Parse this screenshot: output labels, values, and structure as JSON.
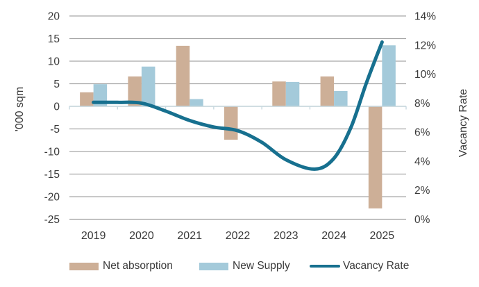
{
  "chart_data": {
    "type": "combo-bar-line",
    "categories": [
      "2019",
      "2020",
      "2021",
      "2022",
      "2023",
      "2024",
      "2025"
    ],
    "left_axis": {
      "title": "'000 sqm",
      "tick_labels": [
        "20",
        "15",
        "10",
        "5",
        "0",
        "-5",
        "-10",
        "-15",
        "-20",
        "-25"
      ],
      "tick_values": [
        20,
        15,
        10,
        5,
        0,
        -5,
        -10,
        -15,
        -20,
        -25
      ],
      "range": [
        -25,
        20
      ]
    },
    "right_axis": {
      "title": "Vacancy Rate",
      "tick_labels": [
        "14%",
        "12%",
        "10%",
        "8%",
        "6%",
        "4%",
        "2%",
        "0%"
      ],
      "tick_values": [
        14,
        12,
        10,
        8,
        6,
        4,
        2,
        0
      ],
      "range_pct": [
        0,
        14
      ]
    },
    "grid": true,
    "legend_position": "bottom",
    "colors": {
      "net_absorption": "#CDAF97",
      "new_supply": "#A4CADA",
      "vacancy": "#17708F",
      "gridline": "#A6A6A6",
      "zero_axis": "#C7D9E0",
      "text": "#3A3A3A"
    },
    "series": [
      {
        "name": "Net absorption",
        "type": "bar",
        "unit": "'000 sqm",
        "color_key": "net_absorption",
        "values": [
          3.1,
          6.6,
          13.4,
          -7.4,
          5.5,
          6.6,
          -22.6
        ]
      },
      {
        "name": "New Supply",
        "type": "bar",
        "unit": "'000 sqm",
        "color_key": "new_supply",
        "values": [
          4.9,
          8.8,
          1.6,
          0,
          5.4,
          3.4,
          13.5
        ]
      },
      {
        "name": "Vacancy Rate",
        "type": "line",
        "axis": "right",
        "unit": "%",
        "color_key": "vacancy",
        "values_pct": [
          8.1,
          8.0,
          6.8,
          6.1,
          4.1,
          4.2,
          12.2
        ],
        "smoothed_points": [
          {
            "x": 2019.0,
            "pct": 8.05
          },
          {
            "x": 2019.5,
            "pct": 8.05
          },
          {
            "x": 2020.0,
            "pct": 8.0
          },
          {
            "x": 2020.5,
            "pct": 7.45
          },
          {
            "x": 2021.0,
            "pct": 6.8
          },
          {
            "x": 2021.5,
            "pct": 6.35
          },
          {
            "x": 2022.0,
            "pct": 6.1
          },
          {
            "x": 2022.5,
            "pct": 5.3
          },
          {
            "x": 2023.0,
            "pct": 4.1
          },
          {
            "x": 2023.6,
            "pct": 3.45
          },
          {
            "x": 2024.0,
            "pct": 4.2
          },
          {
            "x": 2024.35,
            "pct": 6.3
          },
          {
            "x": 2024.67,
            "pct": 9.35
          },
          {
            "x": 2025.0,
            "pct": 12.2
          }
        ]
      }
    ]
  }
}
